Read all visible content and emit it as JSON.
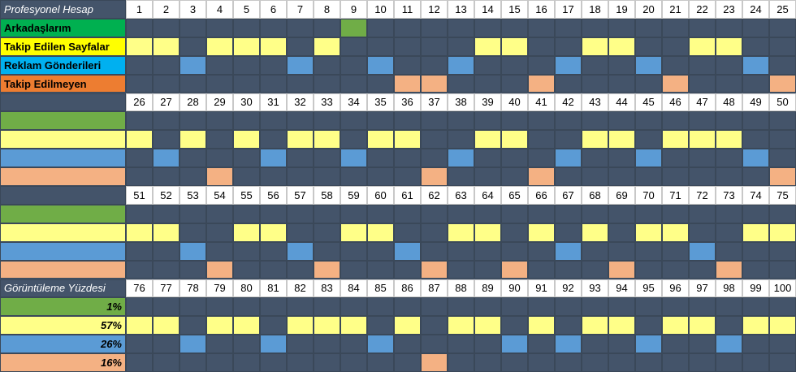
{
  "blocks": [
    {
      "title": "Profesyonel Hesap",
      "numbers": [
        1,
        2,
        3,
        4,
        5,
        6,
        7,
        8,
        9,
        10,
        11,
        12,
        13,
        14,
        15,
        16,
        17,
        18,
        19,
        20,
        21,
        22,
        23,
        24,
        25
      ]
    },
    {
      "numbers": [
        26,
        27,
        28,
        29,
        30,
        31,
        32,
        33,
        34,
        35,
        36,
        37,
        38,
        39,
        40,
        41,
        42,
        43,
        44,
        45,
        46,
        47,
        48,
        49,
        50
      ]
    },
    {
      "numbers": [
        51,
        52,
        53,
        54,
        55,
        56,
        57,
        58,
        59,
        60,
        61,
        62,
        63,
        64,
        65,
        66,
        67,
        68,
        69,
        70,
        71,
        72,
        73,
        74,
        75
      ]
    },
    {
      "title": "Görüntüleme Yüzdesi",
      "numbers": [
        76,
        77,
        78,
        79,
        80,
        81,
        82,
        83,
        84,
        85,
        86,
        87,
        88,
        89,
        90,
        91,
        92,
        93,
        94,
        95,
        96,
        97,
        98,
        99,
        100
      ]
    }
  ],
  "rows": [
    {
      "label": "Arkadaşlarım",
      "percent": "1%",
      "label_color": "#00b050",
      "color": "#70ad47",
      "cells": [
        9
      ]
    },
    {
      "label": "Takip Edilen Sayfalar",
      "percent": "57%",
      "label_color": "#ffff00",
      "color": "#ffff88",
      "cells": [
        1,
        2,
        4,
        5,
        6,
        8,
        14,
        15,
        18,
        19,
        22,
        23,
        26,
        28,
        30,
        32,
        33,
        35,
        36,
        39,
        40,
        43,
        44,
        46,
        47,
        48,
        51,
        52,
        55,
        56,
        59,
        60,
        63,
        64,
        66,
        68,
        70,
        71,
        74,
        75,
        76,
        77,
        79,
        80,
        82,
        83,
        84,
        86,
        88,
        89,
        91,
        93,
        94,
        96,
        97,
        99,
        100
      ]
    },
    {
      "label": "Reklam Gönderileri",
      "percent": "26%",
      "label_color": "#00b0f0",
      "color": "#5b9bd5",
      "cells": [
        3,
        7,
        10,
        13,
        17,
        20,
        24,
        27,
        31,
        34,
        38,
        42,
        45,
        49,
        53,
        57,
        61,
        67,
        72,
        78,
        81,
        85,
        90,
        92,
        95,
        98
      ]
    },
    {
      "label": "Takip Edilmeyen",
      "percent": "16%",
      "label_color": "#ed7d31",
      "color": "#f4b183",
      "cells": [
        11,
        12,
        16,
        21,
        25,
        29,
        37,
        41,
        50,
        54,
        58,
        62,
        65,
        69,
        73,
        87
      ]
    }
  ]
}
